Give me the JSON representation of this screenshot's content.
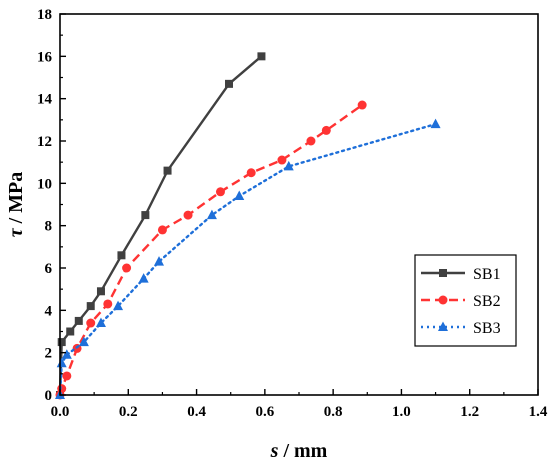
{
  "chart_data": {
    "type": "line",
    "xlabel_var": "s",
    "xlabel_unit": " / mm",
    "ylabel_var": "τ",
    "ylabel_unit": " / MPa",
    "xlim": [
      0,
      1.4
    ],
    "ylim": [
      0,
      18
    ],
    "xticks": [
      "0.0",
      "0.2",
      "0.4",
      "0.6",
      "0.8",
      "1.0",
      "1.2",
      "1.4"
    ],
    "yticks": [
      "0",
      "2",
      "4",
      "6",
      "8",
      "10",
      "12",
      "14",
      "16",
      "18"
    ],
    "grid": false,
    "legend_position": "right",
    "series": [
      {
        "name": "SB1",
        "color": "#404040",
        "line_style": "solid",
        "marker": "square",
        "x": [
          0.0,
          0.005,
          0.03,
          0.055,
          0.09,
          0.12,
          0.18,
          0.25,
          0.315,
          0.495,
          0.59
        ],
        "y": [
          0.0,
          2.5,
          3.0,
          3.5,
          4.2,
          4.9,
          6.6,
          8.5,
          10.6,
          14.7,
          16.0
        ]
      },
      {
        "name": "SB2",
        "color": "#ff3333",
        "line_style": "dashed",
        "marker": "circle",
        "x": [
          0.0,
          0.005,
          0.02,
          0.05,
          0.09,
          0.14,
          0.195,
          0.3,
          0.375,
          0.47,
          0.56,
          0.65,
          0.735,
          0.78,
          0.885
        ],
        "y": [
          0.0,
          0.3,
          0.9,
          2.2,
          3.4,
          4.3,
          6.0,
          7.8,
          8.5,
          9.6,
          10.5,
          11.1,
          12.0,
          12.5,
          13.7
        ]
      },
      {
        "name": "SB3",
        "color": "#1e6fd9",
        "line_style": "dotted",
        "marker": "triangle",
        "x": [
          0.0,
          0.005,
          0.02,
          0.07,
          0.12,
          0.17,
          0.245,
          0.29,
          0.445,
          0.525,
          0.67,
          1.1
        ],
        "y": [
          0.0,
          1.5,
          1.9,
          2.5,
          3.4,
          4.2,
          5.5,
          6.3,
          8.5,
          9.4,
          10.8,
          12.8
        ]
      }
    ]
  }
}
